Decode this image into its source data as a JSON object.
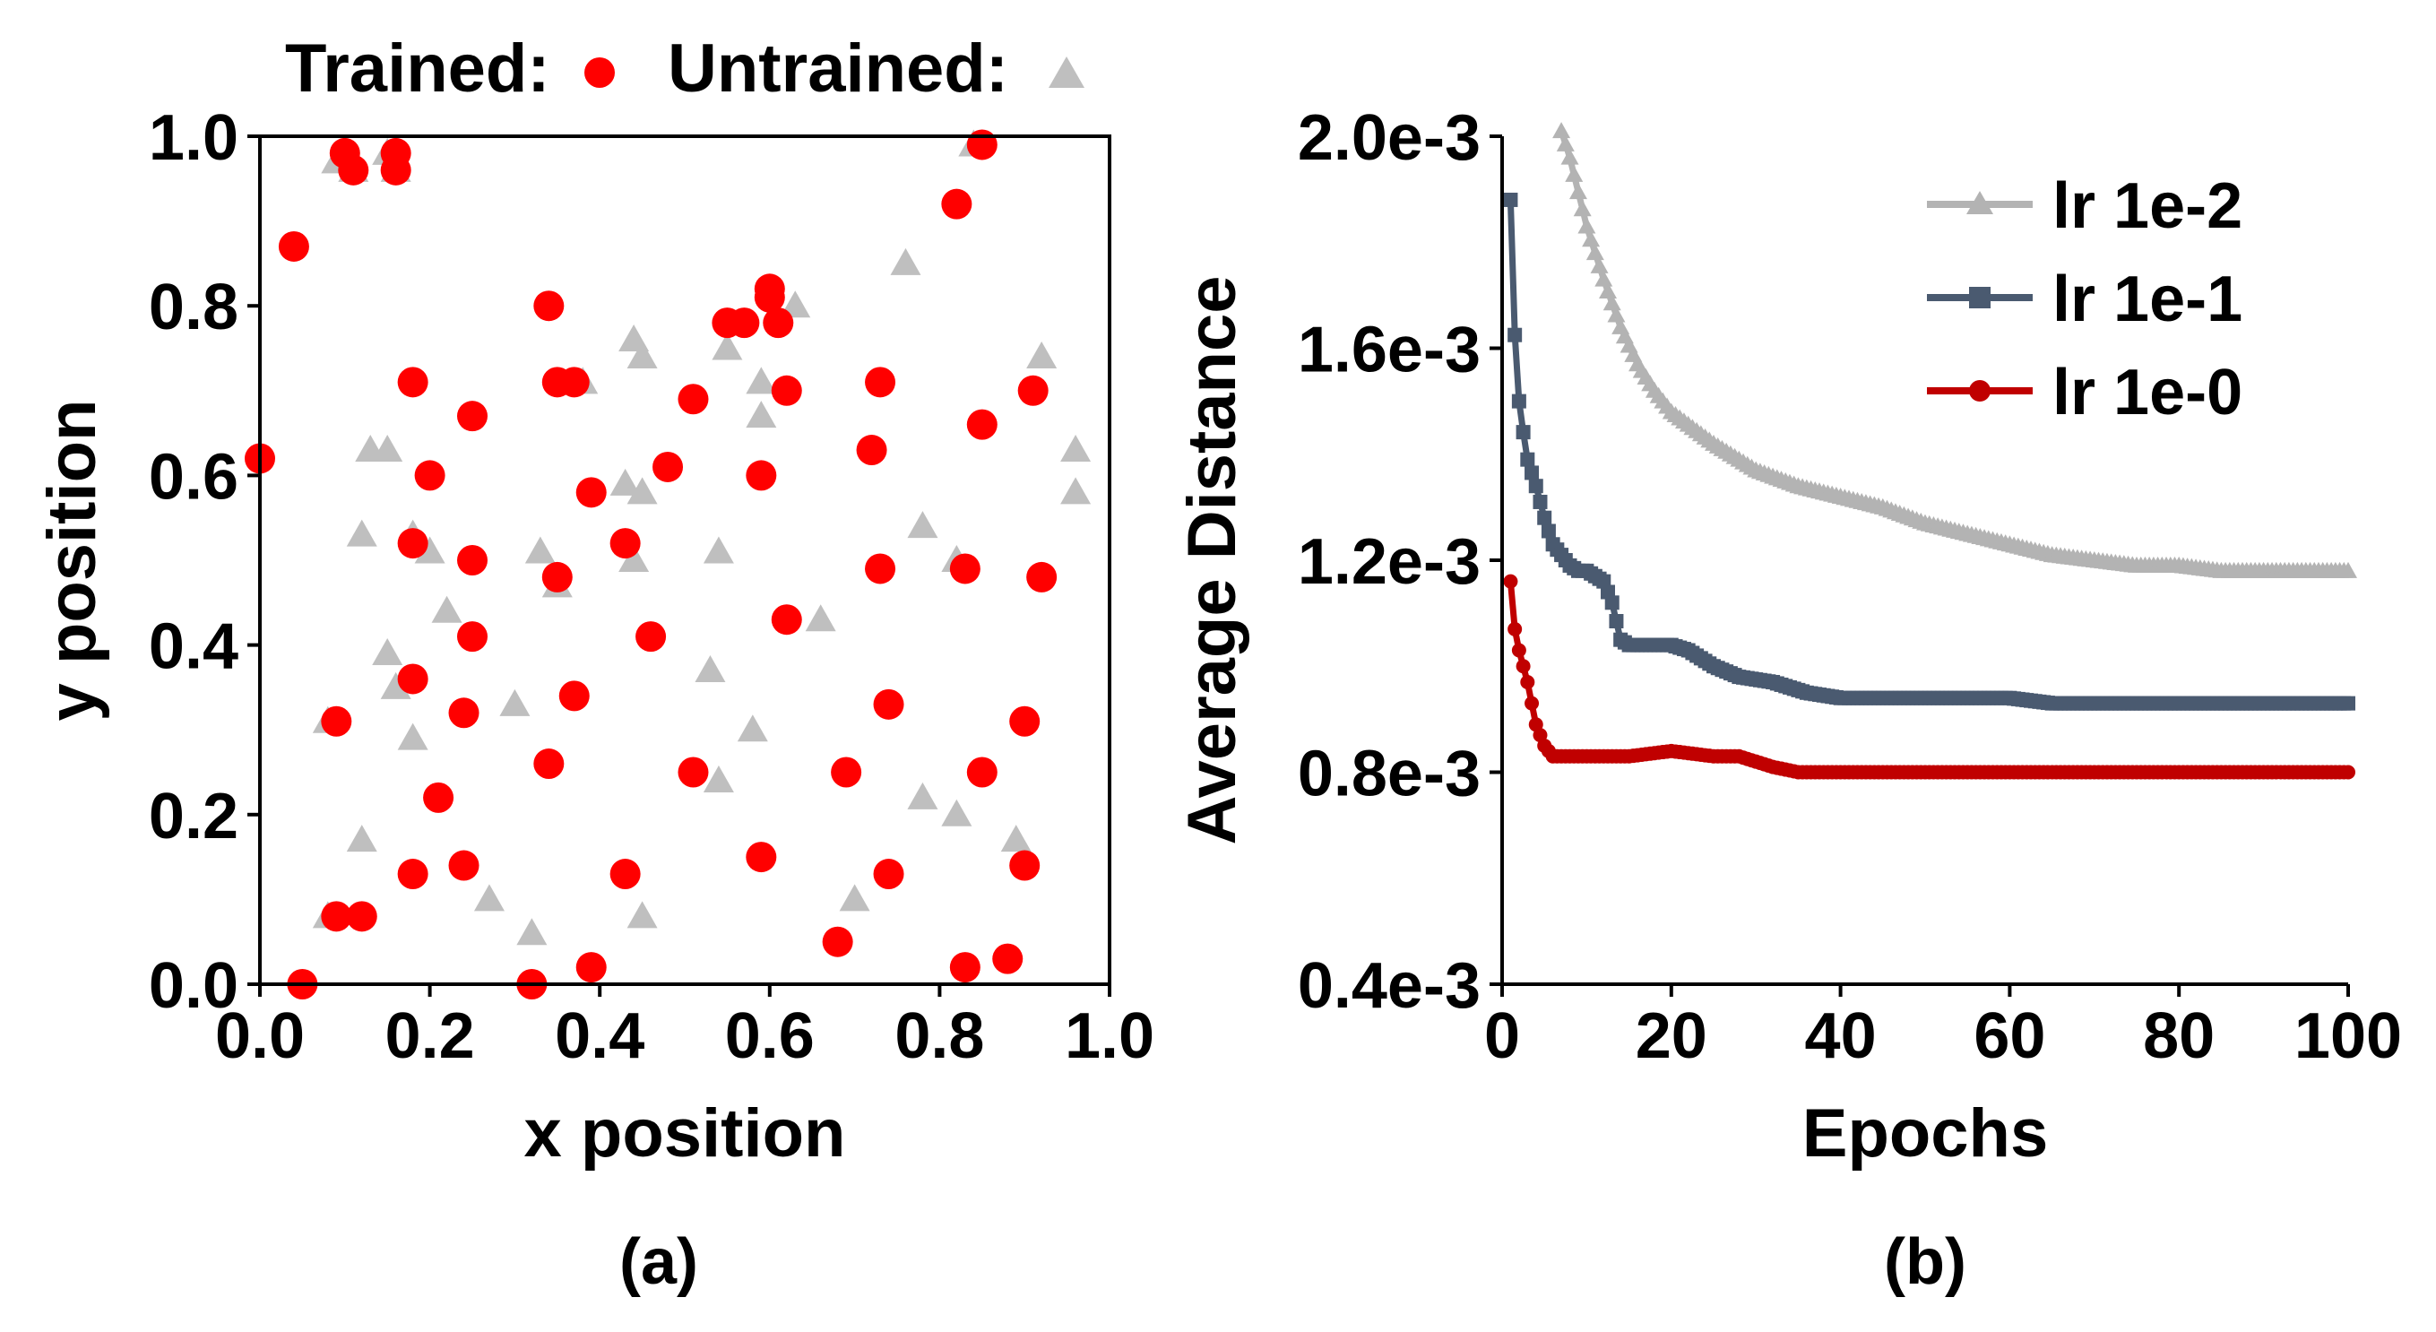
{
  "chart_data": [
    {
      "panel_label": "(a)",
      "type": "scatter",
      "xlabel": "x position",
      "ylabel": "y position",
      "xlim": [
        0,
        1
      ],
      "ylim": [
        0,
        1
      ],
      "xticks": [
        "0.0",
        "0.2",
        "0.4",
        "0.6",
        "0.8",
        "1.0"
      ],
      "yticks": [
        "0.0",
        "0.2",
        "0.4",
        "0.6",
        "0.8",
        "1.0"
      ],
      "grid": false,
      "legend": {
        "placement": "top",
        "trained_label": "Trained:",
        "untrained_label": "Untrained:"
      },
      "colors": {
        "trained": "#ff0000",
        "untrained": "#bfbfbf"
      },
      "series": [
        {
          "key": "untrained",
          "points": [
            [
              0.09,
              0.97
            ],
            [
              0.11,
              0.96
            ],
            [
              0.16,
              0.96
            ],
            [
              0.15,
              0.98
            ],
            [
              0.08,
              0.31
            ],
            [
              0.13,
              0.63
            ],
            [
              0.15,
              0.63
            ],
            [
              0.12,
              0.53
            ],
            [
              0.18,
              0.53
            ],
            [
              0.2,
              0.51
            ],
            [
              0.15,
              0.39
            ],
            [
              0.22,
              0.44
            ],
            [
              0.16,
              0.35
            ],
            [
              0.18,
              0.29
            ],
            [
              0.12,
              0.17
            ],
            [
              0.08,
              0.08
            ],
            [
              0.27,
              0.1
            ],
            [
              0.3,
              0.33
            ],
            [
              0.32,
              0.06
            ],
            [
              0.33,
              0.51
            ],
            [
              0.35,
              0.47
            ],
            [
              0.38,
              0.71
            ],
            [
              0.43,
              0.59
            ],
            [
              0.44,
              0.76
            ],
            [
              0.45,
              0.74
            ],
            [
              0.45,
              0.58
            ],
            [
              0.44,
              0.5
            ],
            [
              0.45,
              0.08
            ],
            [
              0.53,
              0.37
            ],
            [
              0.54,
              0.24
            ],
            [
              0.54,
              0.51
            ],
            [
              0.55,
              0.75
            ],
            [
              0.58,
              0.3
            ],
            [
              0.59,
              0.67
            ],
            [
              0.59,
              0.71
            ],
            [
              0.63,
              0.8
            ],
            [
              0.66,
              0.43
            ],
            [
              0.7,
              0.1
            ],
            [
              0.76,
              0.85
            ],
            [
              0.78,
              0.54
            ],
            [
              0.78,
              0.22
            ],
            [
              0.82,
              0.2
            ],
            [
              0.82,
              0.5
            ],
            [
              0.84,
              0.99
            ],
            [
              0.89,
              0.17
            ],
            [
              0.92,
              0.74
            ],
            [
              0.96,
              0.63
            ],
            [
              0.96,
              0.58
            ]
          ]
        },
        {
          "key": "trained",
          "points": [
            [
              0.0,
              0.62
            ],
            [
              0.04,
              0.87
            ],
            [
              0.1,
              0.98
            ],
            [
              0.11,
              0.96
            ],
            [
              0.16,
              0.98
            ],
            [
              0.16,
              0.96
            ],
            [
              0.05,
              0.0
            ],
            [
              0.09,
              0.31
            ],
            [
              0.09,
              0.08
            ],
            [
              0.12,
              0.08
            ],
            [
              0.18,
              0.71
            ],
            [
              0.2,
              0.6
            ],
            [
              0.18,
              0.52
            ],
            [
              0.25,
              0.67
            ],
            [
              0.25,
              0.5
            ],
            [
              0.25,
              0.41
            ],
            [
              0.18,
              0.36
            ],
            [
              0.24,
              0.32
            ],
            [
              0.21,
              0.22
            ],
            [
              0.24,
              0.14
            ],
            [
              0.18,
              0.13
            ],
            [
              0.34,
              0.8
            ],
            [
              0.35,
              0.71
            ],
            [
              0.37,
              0.71
            ],
            [
              0.39,
              0.58
            ],
            [
              0.35,
              0.48
            ],
            [
              0.37,
              0.34
            ],
            [
              0.34,
              0.26
            ],
            [
              0.32,
              0.0
            ],
            [
              0.39,
              0.02
            ],
            [
              0.43,
              0.52
            ],
            [
              0.43,
              0.13
            ],
            [
              0.48,
              0.61
            ],
            [
              0.51,
              0.69
            ],
            [
              0.46,
              0.41
            ],
            [
              0.51,
              0.25
            ],
            [
              0.55,
              0.78
            ],
            [
              0.57,
              0.78
            ],
            [
              0.6,
              0.82
            ],
            [
              0.6,
              0.81
            ],
            [
              0.61,
              0.78
            ],
            [
              0.62,
              0.7
            ],
            [
              0.59,
              0.6
            ],
            [
              0.62,
              0.43
            ],
            [
              0.59,
              0.15
            ],
            [
              0.73,
              0.71
            ],
            [
              0.72,
              0.63
            ],
            [
              0.73,
              0.49
            ],
            [
              0.74,
              0.33
            ],
            [
              0.69,
              0.25
            ],
            [
              0.74,
              0.13
            ],
            [
              0.68,
              0.05
            ],
            [
              0.82,
              0.92
            ],
            [
              0.85,
              0.99
            ],
            [
              0.85,
              0.66
            ],
            [
              0.83,
              0.49
            ],
            [
              0.85,
              0.25
            ],
            [
              0.83,
              0.02
            ],
            [
              0.88,
              0.03
            ],
            [
              0.91,
              0.7
            ],
            [
              0.92,
              0.48
            ],
            [
              0.9,
              0.31
            ],
            [
              0.9,
              0.14
            ]
          ]
        }
      ]
    },
    {
      "panel_label": "(b)",
      "type": "line",
      "xlabel": "Epochs",
      "ylabel": "Average Distance",
      "xlim": [
        0,
        100
      ],
      "ylim": [
        0.0004,
        0.002
      ],
      "xticks": [
        "0",
        "20",
        "40",
        "60",
        "80",
        "100"
      ],
      "yticks": [
        "0.4e-3",
        "0.8e-3",
        "1.2e-3",
        "1.6e-3",
        "2.0e-3"
      ],
      "grid": false,
      "legend": {
        "placement": "top-right"
      },
      "series": [
        {
          "name": "lr 1e-2",
          "color": "#b3b3b3",
          "marker": "triangle",
          "anchors": [
            [
              7,
              0.00201
            ],
            [
              8,
              0.00196
            ],
            [
              10,
              0.00183
            ],
            [
              12,
              0.00173
            ],
            [
              14,
              0.00164
            ],
            [
              16,
              0.00157
            ],
            [
              18,
              0.00152
            ],
            [
              20,
              0.00148
            ],
            [
              25,
              0.00142
            ],
            [
              30,
              0.00137
            ],
            [
              35,
              0.00134
            ],
            [
              40,
              0.00132
            ],
            [
              45,
              0.0013
            ],
            [
              50,
              0.00127
            ],
            [
              55,
              0.00125
            ],
            [
              60,
              0.00123
            ],
            [
              65,
              0.00121
            ],
            [
              70,
              0.0012
            ],
            [
              75,
              0.00119
            ],
            [
              80,
              0.00119
            ],
            [
              85,
              0.00118
            ],
            [
              90,
              0.00118
            ],
            [
              95,
              0.00118
            ],
            [
              100,
              0.00118
            ]
          ]
        },
        {
          "name": "lr 1e-1",
          "color": "#4a5a70",
          "marker": "square",
          "anchors": [
            [
              1,
              0.00188
            ],
            [
              1.4,
              0.00165
            ],
            [
              2,
              0.0015
            ],
            [
              2.6,
              0.00143
            ],
            [
              3,
              0.00139
            ],
            [
              4,
              0.00134
            ],
            [
              5,
              0.00128
            ],
            [
              6,
              0.00123
            ],
            [
              7,
              0.00121
            ],
            [
              8,
              0.00119
            ],
            [
              9,
              0.00118
            ],
            [
              10,
              0.00118
            ],
            [
              11,
              0.00117
            ],
            [
              12,
              0.00116
            ],
            [
              13,
              0.00112
            ],
            [
              14,
              0.00105
            ],
            [
              15,
              0.00104
            ],
            [
              18,
              0.00104
            ],
            [
              20,
              0.00104
            ],
            [
              22,
              0.00103
            ],
            [
              25,
              0.001
            ],
            [
              28,
              0.00098
            ],
            [
              32,
              0.00097
            ],
            [
              36,
              0.00095
            ],
            [
              40,
              0.00094
            ],
            [
              50,
              0.00094
            ],
            [
              60,
              0.00094
            ],
            [
              65,
              0.00093
            ],
            [
              75,
              0.00093
            ],
            [
              85,
              0.00093
            ],
            [
              100,
              0.00093
            ]
          ]
        },
        {
          "name": "lr 1e-0",
          "color": "#c00000",
          "marker": "circle",
          "anchors": [
            [
              1,
              0.00116
            ],
            [
              1.5,
              0.00107
            ],
            [
              2,
              0.00103
            ],
            [
              3,
              0.00097
            ],
            [
              4,
              0.00089
            ],
            [
              5,
              0.00085
            ],
            [
              6,
              0.00083
            ],
            [
              8,
              0.00083
            ],
            [
              10,
              0.00083
            ],
            [
              15,
              0.00083
            ],
            [
              20,
              0.00084
            ],
            [
              25,
              0.00083
            ],
            [
              28,
              0.00083
            ],
            [
              32,
              0.00081
            ],
            [
              35,
              0.0008
            ],
            [
              40,
              0.0008
            ],
            [
              45,
              0.0008
            ],
            [
              50,
              0.0008
            ],
            [
              55,
              0.0008
            ],
            [
              60,
              0.0008
            ],
            [
              65,
              0.0008
            ],
            [
              70,
              0.0008
            ],
            [
              75,
              0.0008
            ],
            [
              80,
              0.0008
            ],
            [
              85,
              0.0008
            ],
            [
              90,
              0.0008
            ],
            [
              95,
              0.0008
            ],
            [
              100,
              0.0008
            ]
          ]
        }
      ]
    }
  ]
}
